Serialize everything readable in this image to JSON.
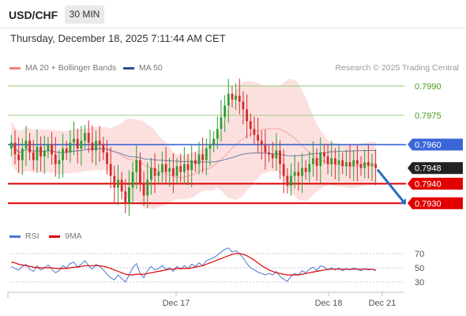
{
  "header": {
    "symbol": "USD/CHF",
    "timeframe": "30 MIN"
  },
  "datetime": "Thursday, December 18, 2025 7:11:44 AM CET",
  "legend": {
    "items": [
      {
        "label": "MA 20 + Bollinger Bands",
        "color": "#f08080"
      },
      {
        "label": "MA 50",
        "color": "#2f4f8f"
      }
    ],
    "credit": "Research © 2025 Trading Central"
  },
  "rsi_legend": {
    "items": [
      {
        "label": "RSI",
        "color": "#4a78d0"
      },
      {
        "label": "9MA",
        "color": "#e00000"
      }
    ]
  },
  "colors": {
    "green_level": "#a8d08d",
    "green_text": "#4a9a1a",
    "blue_level": "#3a66d8",
    "red_level": "#e00000",
    "bull_candle": "#2e9e2e",
    "bear_candle": "#d62b2b",
    "band_fill": "#fbdada",
    "arrow": "#2a6bbf",
    "price_label": "#222222"
  },
  "chart_data": [
    {
      "type": "candlestick",
      "title": "USD/CHF 30 MIN",
      "ylim": [
        0.792,
        0.7996
      ],
      "x_ticks": [
        "Dec 17",
        "Dec 18",
        "Dec 21"
      ],
      "levels": [
        {
          "value": 0.799,
          "label": "0.7990",
          "kind": "resistance"
        },
        {
          "value": 0.7975,
          "label": "0.7975",
          "kind": "resistance"
        },
        {
          "value": 0.796,
          "label": "0.7960",
          "kind": "pivot"
        },
        {
          "value": 0.7948,
          "label": "0.7948",
          "kind": "last"
        },
        {
          "value": 0.794,
          "label": "0.7940",
          "kind": "support"
        },
        {
          "value": 0.793,
          "label": "0.7930",
          "kind": "support"
        }
      ],
      "close": [
        0.7961,
        0.7955,
        0.7952,
        0.7958,
        0.7962,
        0.7956,
        0.7952,
        0.7959,
        0.7954,
        0.7957,
        0.796,
        0.7955,
        0.795,
        0.7952,
        0.7958,
        0.7956,
        0.7961,
        0.7963,
        0.7958,
        0.7962,
        0.7966,
        0.7961,
        0.7957,
        0.7962,
        0.796,
        0.7956,
        0.795,
        0.7944,
        0.7938,
        0.7942,
        0.7936,
        0.793,
        0.7938,
        0.7946,
        0.7952,
        0.794,
        0.7934,
        0.7942,
        0.7948,
        0.7944,
        0.7946,
        0.795,
        0.7946,
        0.7948,
        0.7944,
        0.7949,
        0.7946,
        0.795,
        0.7947,
        0.7952,
        0.795,
        0.7955,
        0.7952,
        0.7958,
        0.796,
        0.7963,
        0.7968,
        0.7974,
        0.798,
        0.7986,
        0.7983,
        0.7985,
        0.7982,
        0.7978,
        0.7972,
        0.7968,
        0.7965,
        0.7962,
        0.796,
        0.7956,
        0.7955,
        0.7953,
        0.7957,
        0.795,
        0.7944,
        0.7939,
        0.7944,
        0.7946,
        0.7944,
        0.7948,
        0.7946,
        0.795,
        0.7953,
        0.7949,
        0.7956,
        0.7954,
        0.795,
        0.7953,
        0.795,
        0.7952,
        0.7949,
        0.7951,
        0.7949,
        0.7952,
        0.795,
        0.7948,
        0.7951,
        0.7949,
        0.795,
        0.7948
      ],
      "forecast_arrow": {
        "from": 0.7948,
        "to": 0.793
      }
    },
    {
      "type": "line",
      "title": "RSI",
      "ylim": [
        20,
        80
      ],
      "y_ticks": [
        70,
        50,
        30
      ],
      "series": [
        {
          "name": "RSI",
          "values": [
            52,
            49,
            47,
            52,
            55,
            48,
            45,
            53,
            47,
            50,
            54,
            48,
            43,
            46,
            53,
            50,
            56,
            58,
            51,
            55,
            60,
            53,
            48,
            55,
            52,
            47,
            41,
            36,
            33,
            40,
            35,
            30,
            40,
            50,
            56,
            42,
            36,
            46,
            52,
            47,
            49,
            53,
            48,
            50,
            45,
            52,
            48,
            53,
            49,
            55,
            52,
            57,
            53,
            60,
            62,
            64,
            68,
            72,
            76,
            78,
            72,
            74,
            70,
            64,
            56,
            50,
            47,
            44,
            42,
            40,
            42,
            40,
            45,
            38,
            34,
            31,
            38,
            42,
            40,
            46,
            43,
            48,
            51,
            46,
            53,
            51,
            47,
            50,
            47,
            50,
            46,
            49,
            47,
            50,
            48,
            46,
            49,
            47,
            48,
            46
          ]
        },
        {
          "name": "9MA",
          "values": [
            58,
            57,
            55,
            54,
            53,
            52,
            51,
            50,
            50,
            50,
            50,
            50,
            49,
            49,
            49,
            49,
            50,
            51,
            51,
            52,
            53,
            53,
            53,
            53,
            53,
            52,
            51,
            49,
            47,
            45,
            43,
            41,
            40,
            40,
            41,
            41,
            41,
            42,
            43,
            44,
            45,
            46,
            47,
            48,
            48,
            49,
            49,
            49,
            49,
            50,
            51,
            52,
            53,
            55,
            57,
            59,
            61,
            63,
            65,
            67,
            69,
            70,
            70,
            69,
            67,
            64,
            61,
            57,
            53,
            50,
            47,
            45,
            43,
            42,
            41,
            40,
            40,
            40,
            40,
            41,
            42,
            43,
            44,
            45,
            46,
            47,
            48,
            48,
            48,
            48,
            48,
            48,
            48,
            48,
            48,
            48,
            48,
            48,
            48,
            47
          ]
        }
      ]
    }
  ]
}
